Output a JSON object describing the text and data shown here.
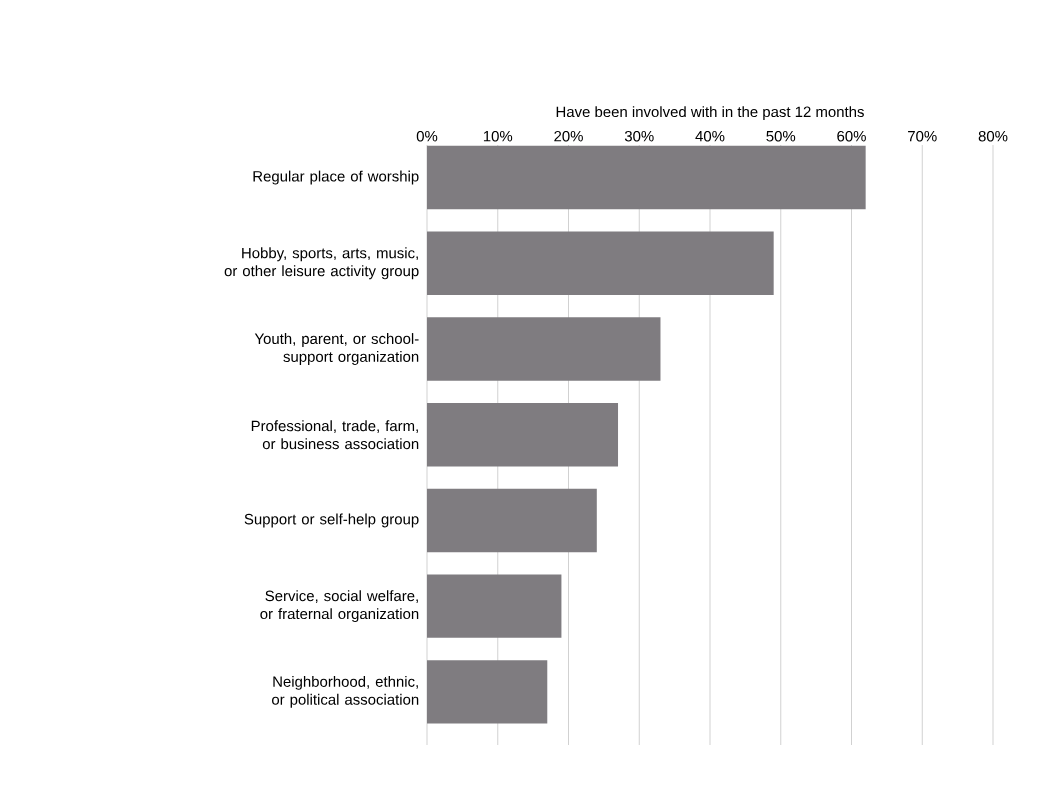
{
  "chart_data": {
    "type": "bar",
    "orientation": "horizontal",
    "xlabel": "Have been involved with in the past 12 months",
    "categories": [
      "Regular place of worship",
      "Hobby, sports, arts, music, or other leisure activity group",
      "Youth, parent, or school-support organization",
      "Professional, trade, farm, or business association",
      "Support or self-help group",
      "Service, social welfare, or fraternal organization",
      "Neighborhood, ethnic, or political association"
    ],
    "values": [
      62,
      49,
      33,
      27,
      24,
      19,
      17
    ],
    "color": "#7f7c80",
    "xlim": [
      0,
      80
    ],
    "xticks": [
      {
        "value": 0,
        "label": "0%"
      },
      {
        "value": 10,
        "label": "10%"
      },
      {
        "value": 20,
        "label": "20%"
      },
      {
        "value": 30,
        "label": "30%"
      },
      {
        "value": 40,
        "label": "40%"
      },
      {
        "value": 50,
        "label": "50%"
      },
      {
        "value": 60,
        "label": "60%"
      },
      {
        "value": 70,
        "label": "70%"
      },
      {
        "value": 80,
        "label": "80%"
      }
    ],
    "grid": "x"
  }
}
